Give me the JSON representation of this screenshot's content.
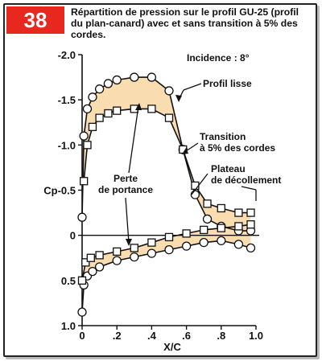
{
  "figure_number": "38",
  "caption": "Répartition de pression sur le profil GU-25 (profil du plan-canard) avec et sans transition à 5% des cordes.",
  "colors": {
    "fill": "#f9dcb0",
    "badge": "#e8281e",
    "line": "#111111"
  },
  "chart_data": {
    "type": "line",
    "title": "",
    "xlabel": "X/C",
    "ylabel": "Cp",
    "xlim": [
      0,
      1.0
    ],
    "ylim": [
      -2.0,
      1.0
    ],
    "y_inverted": true,
    "grid": false,
    "x_ticks": [
      "0",
      ".2",
      ".4",
      ".6",
      ".8",
      "1.0"
    ],
    "y_ticks": [
      "-2.0",
      "-1.5",
      "-1.0",
      "Cp-0.5",
      "0",
      "0.5",
      "1.0"
    ],
    "series": [
      {
        "name": "Profil lisse",
        "marker": "circle",
        "upper": {
          "x": [
            0.0,
            0.01,
            0.03,
            0.06,
            0.1,
            0.15,
            0.2,
            0.3,
            0.4,
            0.5,
            0.58,
            0.65,
            0.72,
            0.8,
            0.9,
            0.97
          ],
          "y": [
            -0.2,
            -1.1,
            -1.4,
            -1.53,
            -1.62,
            -1.68,
            -1.72,
            -1.75,
            -1.75,
            -1.6,
            -0.95,
            -0.45,
            -0.18,
            -0.1,
            -0.05,
            -0.05
          ]
        },
        "lower": {
          "x": [
            0.0,
            0.01,
            0.03,
            0.06,
            0.1,
            0.2,
            0.3,
            0.4,
            0.5,
            0.6,
            0.7,
            0.8,
            0.9,
            0.97
          ],
          "y": [
            0.85,
            0.55,
            0.45,
            0.4,
            0.35,
            0.28,
            0.24,
            0.2,
            0.16,
            0.12,
            0.08,
            0.06,
            0.1,
            0.14
          ]
        }
      },
      {
        "name": "Transition à 5% des cordes",
        "marker": "square",
        "upper": {
          "x": [
            0.01,
            0.03,
            0.06,
            0.1,
            0.15,
            0.2,
            0.3,
            0.4,
            0.5,
            0.58,
            0.65,
            0.72,
            0.8,
            0.9,
            0.97
          ],
          "y": [
            -0.6,
            -1.0,
            -1.2,
            -1.3,
            -1.35,
            -1.38,
            -1.4,
            -1.4,
            -1.3,
            -0.95,
            -0.55,
            -0.35,
            -0.3,
            -0.25,
            -0.25
          ]
        },
        "lower": {
          "x": [
            0.0,
            0.02,
            0.05,
            0.1,
            0.2,
            0.3,
            0.4,
            0.5,
            0.6,
            0.7,
            0.8,
            0.9,
            0.97
          ],
          "y": [
            0.5,
            0.3,
            0.25,
            0.22,
            0.18,
            0.14,
            0.08,
            0.02,
            -0.02,
            -0.06,
            -0.08,
            -0.1,
            -0.12
          ]
        }
      }
    ],
    "annotations": [
      {
        "text": "Incidence : 8°"
      },
      {
        "text": "Profil lisse"
      },
      {
        "text": "Transition"
      },
      {
        "text": "à 5% des cordes"
      },
      {
        "text": "Perte"
      },
      {
        "text": "de portance"
      },
      {
        "text": "Plateau"
      },
      {
        "text": "de décollement"
      }
    ]
  }
}
